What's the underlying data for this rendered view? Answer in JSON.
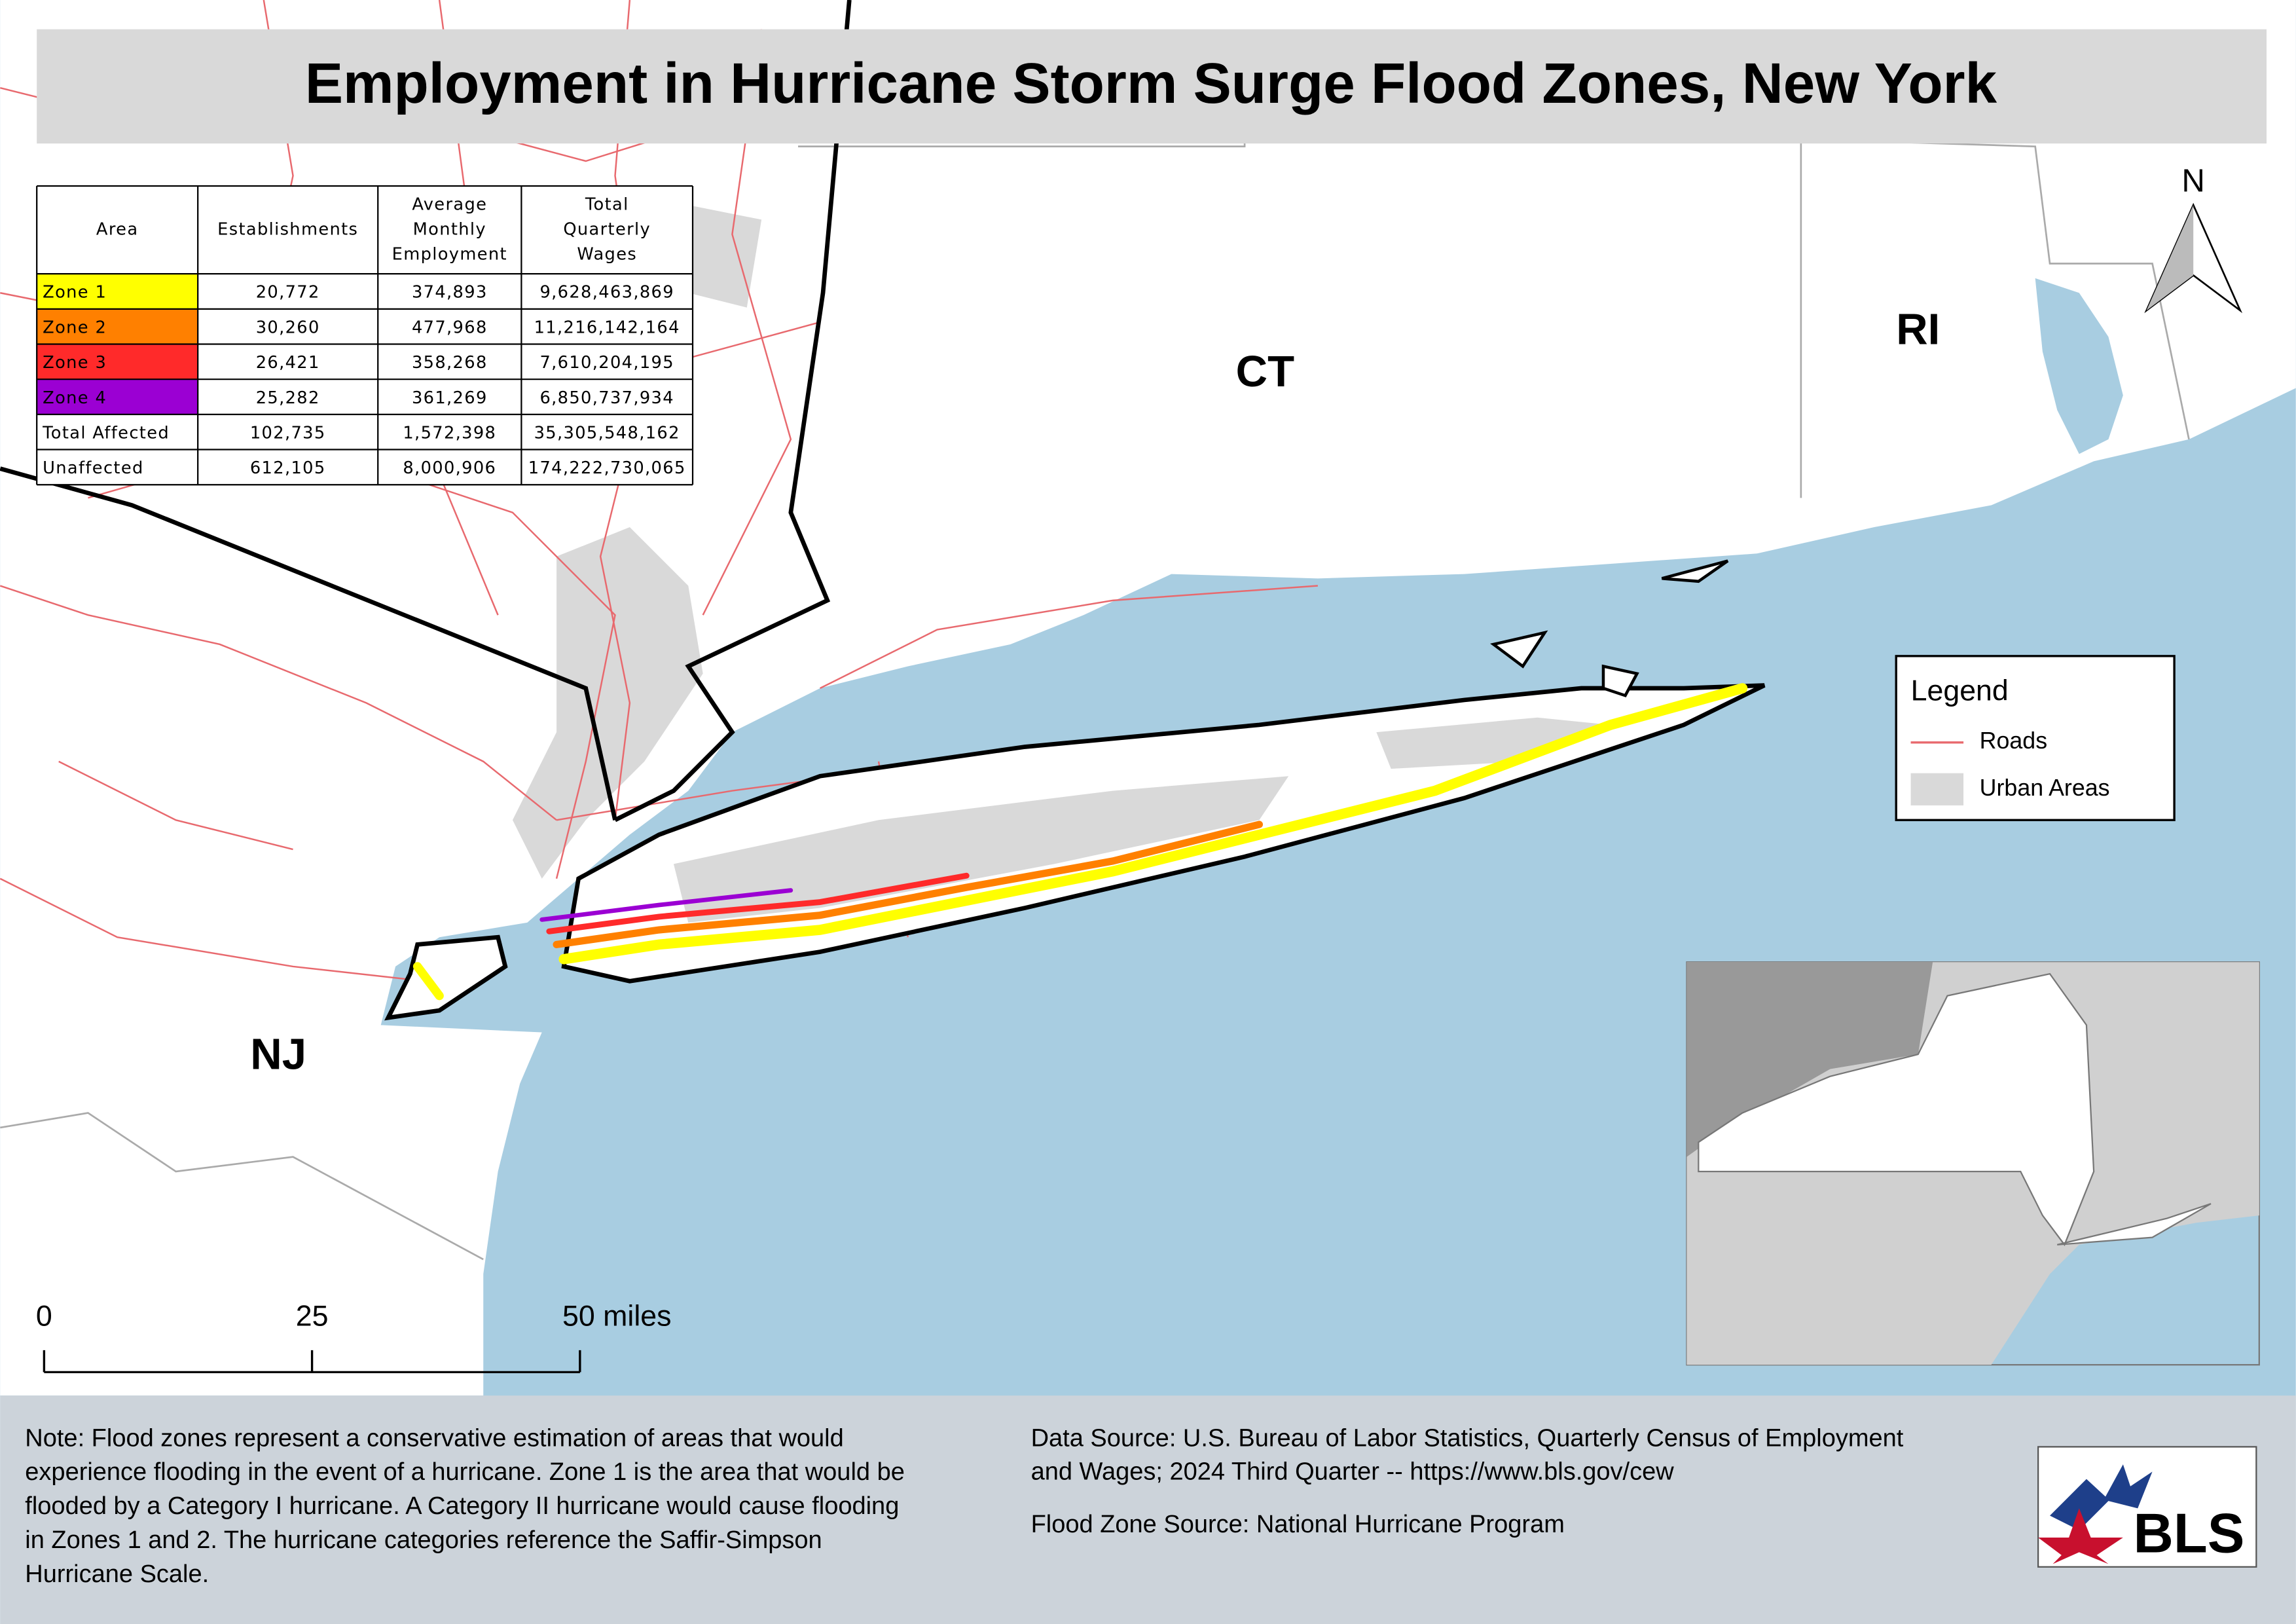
{
  "header": {
    "title": "Employment in Hurricane Storm Surge Flood Zones, New York"
  },
  "table": {
    "columns": [
      [
        "Area"
      ],
      [
        "Establishments"
      ],
      [
        "Average",
        "Monthly",
        "Employment"
      ],
      [
        "Total",
        "Quarterly",
        "Wages"
      ]
    ],
    "rows": [
      {
        "area": "Zone 1",
        "color": "#ffff00",
        "cells": [
          "20,772",
          "374,893",
          "9,628,463,869"
        ]
      },
      {
        "area": "Zone 2",
        "color": "#ff8000",
        "cells": [
          "30,260",
          "477,968",
          "11,216,142,164"
        ]
      },
      {
        "area": "Zone 3",
        "color": "#ff2a2a",
        "cells": [
          "26,421",
          "358,268",
          "7,610,204,195"
        ]
      },
      {
        "area": "Zone 4",
        "color": "#9b00d3",
        "cells": [
          "25,282",
          "361,269",
          "6,850,737,934"
        ]
      },
      {
        "area": "Total Affected",
        "cells": [
          "102,735",
          "1,572,398",
          "35,305,548,162"
        ]
      },
      {
        "area": "Unaffected",
        "cells": [
          "612,105",
          "8,000,906",
          "174,222,730,065"
        ]
      }
    ]
  },
  "map_labels": [
    "CT",
    "RI",
    "NJ"
  ],
  "north_arrow": "N",
  "legend": {
    "title": "Legend",
    "items": [
      {
        "label": "Roads",
        "color": "#e8696e"
      },
      {
        "label": "Urban Areas",
        "color": "#d9d9d9"
      }
    ]
  },
  "scale_bar": [
    "0",
    "25",
    "50 miles"
  ],
  "note": [
    "Note: Flood zones represent a conservative estimation of areas that would",
    "experience flooding in the event of a hurricane. Zone 1 is the area that would be",
    "flooded by a Category I hurricane. A Category II hurricane would cause flooding",
    "in Zones 1 and 2. The hurricane categories reference the Saffir-Simpson",
    "Hurricane Scale."
  ],
  "data_source": [
    "Data Source: U.S. Bureau of Labor Statistics, Quarterly Census of Employment",
    "and Wages; 2024 Third Quarter -- https://www.bls.gov/cew"
  ],
  "flood_zone_source": "Flood Zone Source: National Hurricane Program",
  "logo": "BLS"
}
